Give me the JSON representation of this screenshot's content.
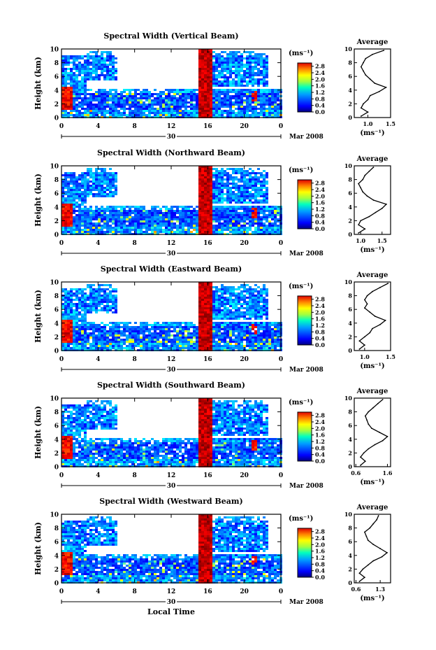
{
  "figure": {
    "xaxis_label": "Local Time",
    "ylabel": "Height (km)",
    "units": "(ms⁻¹)",
    "avg_title": "Average",
    "avg_xlabel": "(ms⁻¹)",
    "date_day": "30",
    "date_month_year": "Mar 2008"
  },
  "chart_data": [
    {
      "type": "heatmap",
      "title": "Spectral Width (Vertical Beam)",
      "x_ticks": [
        "0",
        "4",
        "8",
        "12",
        "16",
        "20",
        "0"
      ],
      "y_ticks": [
        "0",
        "2",
        "4",
        "6",
        "8",
        "10"
      ],
      "xlim": [
        0,
        24
      ],
      "ylim": [
        0,
        10
      ],
      "colorbar_ticks": [
        "0.0",
        "0.4",
        "0.8",
        "1.2",
        "1.6",
        "2.0",
        "2.4",
        "2.8"
      ],
      "colorbar_range": [
        0,
        3.0
      ],
      "average": {
        "type": "line",
        "xlim": [
          0.7,
          1.5
        ],
        "x_ticks": [
          "1.0",
          "1.5"
        ],
        "height": [
          0.2,
          0.8,
          1.4,
          2.0,
          2.6,
          3.2,
          3.8,
          4.4,
          5.0,
          5.6,
          6.2,
          6.8,
          7.4,
          8.0,
          8.6,
          9.2,
          9.8
        ],
        "values": [
          0.85,
          1.0,
          0.85,
          0.9,
          1.0,
          1.05,
          1.25,
          1.4,
          1.15,
          1.05,
          0.95,
          0.9,
          0.85,
          0.9,
          0.95,
          1.1,
          1.35
        ]
      }
    },
    {
      "type": "heatmap",
      "title": "Spectral Width (Northward Beam)",
      "x_ticks": [
        "0",
        "4",
        "8",
        "12",
        "16",
        "20",
        "0"
      ],
      "y_ticks": [
        "0",
        "2",
        "4",
        "6",
        "8",
        "10"
      ],
      "xlim": [
        0,
        24
      ],
      "ylim": [
        0,
        10
      ],
      "colorbar_ticks": [
        "0.0",
        "0.4",
        "0.8",
        "1.2",
        "1.6",
        "2.0",
        "2.4",
        "2.8"
      ],
      "colorbar_range": [
        0,
        3.0
      ],
      "average": {
        "type": "line",
        "xlim": [
          0.85,
          1.7
        ],
        "x_ticks": [
          "1.0",
          "1.5"
        ],
        "height": [
          0.2,
          0.8,
          1.4,
          2.0,
          2.6,
          3.2,
          3.8,
          4.4,
          5.0,
          5.6,
          6.2,
          6.8,
          7.4,
          8.0,
          8.6,
          9.2,
          9.8
        ],
        "values": [
          0.95,
          1.1,
          0.95,
          1.0,
          1.2,
          1.35,
          1.5,
          1.6,
          1.3,
          1.15,
          1.05,
          1.0,
          0.95,
          1.05,
          1.1,
          1.2,
          1.3
        ]
      }
    },
    {
      "type": "heatmap",
      "title": "Spectral Width (Eastward Beam)",
      "x_ticks": [
        "0",
        "4",
        "8",
        "12",
        "16",
        "20",
        "0"
      ],
      "y_ticks": [
        "0",
        "2",
        "4",
        "6",
        "8",
        "10"
      ],
      "xlim": [
        0,
        24
      ],
      "ylim": [
        0,
        10
      ],
      "colorbar_ticks": [
        "0.0",
        "0.4",
        "0.8",
        "1.2",
        "1.6",
        "2.0",
        "2.4",
        "2.8"
      ],
      "colorbar_range": [
        0,
        3.0
      ],
      "average": {
        "type": "line",
        "xlim": [
          0.8,
          1.5
        ],
        "x_ticks": [
          "1.0",
          "1.5"
        ],
        "height": [
          0.2,
          0.8,
          1.4,
          2.0,
          2.6,
          3.2,
          3.8,
          4.4,
          5.0,
          5.6,
          6.2,
          6.8,
          7.4,
          8.0,
          8.6,
          9.2,
          9.8
        ],
        "values": [
          0.9,
          1.0,
          0.9,
          1.0,
          1.1,
          1.15,
          1.3,
          1.4,
          1.2,
          1.1,
          1.0,
          1.05,
          1.0,
          1.05,
          1.15,
          1.3,
          1.45
        ]
      }
    },
    {
      "type": "heatmap",
      "title": "Spectral Width (Southward Beam)",
      "x_ticks": [
        "0",
        "4",
        "8",
        "12",
        "16",
        "20",
        "0"
      ],
      "y_ticks": [
        "0",
        "2",
        "4",
        "6",
        "8",
        "10"
      ],
      "xlim": [
        0,
        24
      ],
      "ylim": [
        0,
        10
      ],
      "colorbar_ticks": [
        "0.0",
        "0.4",
        "0.8",
        "1.2",
        "1.6",
        "2.0",
        "2.4",
        "2.8"
      ],
      "colorbar_range": [
        0,
        3.0
      ],
      "average": {
        "type": "line",
        "xlim": [
          0.55,
          1.7
        ],
        "x_ticks": [
          "0.6",
          "1.6"
        ],
        "height": [
          0.2,
          0.8,
          1.4,
          2.0,
          2.6,
          3.2,
          3.8,
          4.4,
          5.0,
          5.6,
          6.2,
          6.8,
          7.4,
          8.0,
          8.6,
          9.2,
          9.8
        ],
        "values": [
          0.75,
          0.9,
          0.75,
          0.85,
          1.0,
          1.2,
          1.45,
          1.6,
          1.35,
          1.1,
          1.0,
          0.95,
          0.9,
          1.0,
          1.15,
          1.3,
          1.45
        ]
      }
    },
    {
      "type": "heatmap",
      "title": "Spectral Width (Westward Beam)",
      "x_ticks": [
        "0",
        "4",
        "8",
        "12",
        "16",
        "20",
        "0"
      ],
      "y_ticks": [
        "0",
        "2",
        "4",
        "6",
        "8",
        "10"
      ],
      "xlim": [
        0,
        24
      ],
      "ylim": [
        0,
        10
      ],
      "colorbar_ticks": [
        "0.0",
        "0.4",
        "0.8",
        "1.2",
        "1.6",
        "2.0",
        "2.4",
        "2.8"
      ],
      "colorbar_range": [
        0,
        3.0
      ],
      "average": {
        "type": "line",
        "xlim": [
          0.55,
          1.6
        ],
        "x_ticks": [
          "0.6",
          "1.3"
        ],
        "height": [
          0.2,
          0.8,
          1.4,
          2.0,
          2.6,
          3.2,
          3.8,
          4.4,
          5.0,
          5.6,
          6.2,
          6.8,
          7.4,
          8.0,
          8.6,
          9.2,
          9.8
        ],
        "values": [
          0.7,
          0.85,
          0.7,
          0.8,
          0.95,
          1.1,
          1.35,
          1.5,
          1.3,
          1.1,
          0.95,
          0.9,
          0.85,
          1.0,
          1.1,
          1.2,
          1.25
        ]
      }
    }
  ]
}
